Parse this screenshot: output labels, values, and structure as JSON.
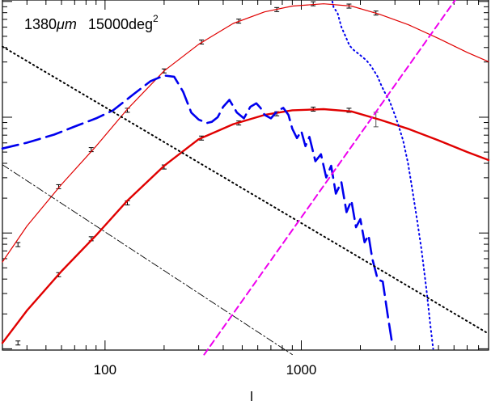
{
  "chart_data": {
    "type": "line",
    "title": "",
    "annotation": {
      "wavelength": "1380",
      "wavelength_unit": "μm",
      "area": "15000",
      "area_unit": "deg",
      "area_exponent": "2"
    },
    "xlabel": "l",
    "ylabel": "",
    "x_scale": "log",
    "y_scale": "log",
    "xlim": [
      30,
      9000
    ],
    "ylim_decades": 3,
    "grid": false,
    "legend": "none",
    "x_ticks": [
      {
        "value": 100,
        "label": "100"
      },
      {
        "value": 1000,
        "label": "1000"
      }
    ],
    "series": [
      {
        "style": "solid-thin",
        "color": "#e00000",
        "x": [
          30,
          40,
          60,
          90,
          130,
          200,
          300,
          450,
          650,
          900,
          1300,
          1800,
          2500,
          3500,
          5000,
          7000,
          9000
        ],
        "y": [
          -1.25,
          -0.94,
          -0.58,
          -0.25,
          0.07,
          0.4,
          0.63,
          0.81,
          0.91,
          0.96,
          0.98,
          0.96,
          0.89,
          0.8,
          0.68,
          0.56,
          0.48
        ]
      },
      {
        "style": "solid-thick",
        "color": "#e00000",
        "x": [
          30,
          40,
          60,
          90,
          130,
          200,
          300,
          450,
          650,
          900,
          1300,
          1800,
          2500,
          3500,
          5000,
          7000,
          9000
        ],
        "y": [
          -1.95,
          -1.67,
          -1.33,
          -1.02,
          -0.72,
          -0.42,
          -0.19,
          -0.06,
          0.02,
          0.06,
          0.07,
          0.05,
          -0.02,
          -0.1,
          -0.2,
          -0.3,
          -0.37
        ]
      },
      {
        "style": "dashed-long",
        "color": "#0000ee",
        "x": [
          30,
          40,
          55,
          70,
          90,
          110,
          140,
          170,
          200,
          225,
          250,
          275,
          300,
          330,
          350,
          375,
          400,
          430,
          470,
          510,
          550,
          590,
          620,
          650,
          700,
          760,
          810,
          860,
          900,
          950,
          1000,
          1050,
          1100,
          1180,
          1260,
          1340,
          1420,
          1500,
          1600,
          1700,
          1800,
          1900,
          2000,
          2100,
          2200,
          2300,
          2450,
          2600,
          2750,
          2900
        ],
        "y": [
          -0.27,
          -0.22,
          -0.15,
          -0.08,
          -0.01,
          0.06,
          0.2,
          0.31,
          0.36,
          0.35,
          0.22,
          0.04,
          -0.02,
          -0.05,
          -0.04,
          0.0,
          0.09,
          0.15,
          0.04,
          -0.01,
          0.09,
          0.12,
          0.08,
          0.02,
          -0.01,
          0.06,
          0.08,
          0.02,
          -0.1,
          -0.18,
          -0.12,
          -0.25,
          -0.17,
          -0.38,
          -0.32,
          -0.52,
          -0.42,
          -0.66,
          -0.56,
          -0.82,
          -0.72,
          -0.95,
          -0.88,
          -1.08,
          -1.02,
          -1.22,
          -1.4,
          -1.42,
          -1.7,
          -1.95
        ]
      },
      {
        "style": "dotted",
        "color": "#0000ee",
        "x": [
          1200,
          1270,
          1340,
          1400,
          1460,
          1530,
          1600,
          1680,
          1760,
          1850,
          1950,
          2050,
          2150,
          2250,
          2350,
          2450,
          2550,
          2650,
          2800,
          2950,
          3100,
          3300,
          3500,
          3700,
          3900,
          4100,
          4350,
          4550,
          4700
        ],
        "y": [
          1.95,
          1.6,
          1.32,
          1.1,
          0.95,
          0.9,
          0.78,
          0.7,
          0.62,
          0.58,
          0.55,
          0.52,
          0.49,
          0.45,
          0.4,
          0.35,
          0.28,
          0.22,
          0.15,
          0.05,
          -0.05,
          -0.2,
          -0.4,
          -0.65,
          -0.9,
          -1.15,
          -1.5,
          -1.8,
          -2.0
        ]
      },
      {
        "style": "dotted",
        "color": "#000000",
        "x": [
          30,
          9000
        ],
        "y": [
          0.61,
          -1.87
        ]
      },
      {
        "style": "dash-dot",
        "color": "#000000",
        "x": [
          30,
          900
        ],
        "y": [
          -0.41,
          -2.05
        ]
      },
      {
        "style": "dashed",
        "color": "#ee00ee",
        "x": [
          320,
          9000
        ],
        "y": [
          -2.05,
          1.42
        ]
      }
    ],
    "error_bar_points": [
      {
        "curve": "thin",
        "x": 36,
        "y": -1.1
      },
      {
        "curve": "thin",
        "x": 58,
        "y": -0.6
      },
      {
        "curve": "thin",
        "x": 85,
        "y": -0.28
      },
      {
        "curve": "thin",
        "x": 130,
        "y": 0.06
      },
      {
        "curve": "thin",
        "x": 200,
        "y": 0.4
      },
      {
        "curve": "thin",
        "x": 310,
        "y": 0.65
      },
      {
        "curve": "thin",
        "x": 480,
        "y": 0.83
      },
      {
        "curve": "thin",
        "x": 750,
        "y": 0.93
      },
      {
        "curve": "thin",
        "x": 1150,
        "y": 0.98
      },
      {
        "curve": "thin",
        "x": 1750,
        "y": 0.96
      },
      {
        "curve": "thin",
        "x": 2400,
        "y": 0.9
      },
      {
        "curve": "thick",
        "x": 36,
        "y": -1.95
      },
      {
        "curve": "thick",
        "x": 58,
        "y": -1.36
      },
      {
        "curve": "thick",
        "x": 85,
        "y": -1.05
      },
      {
        "curve": "thick",
        "x": 130,
        "y": -0.74
      },
      {
        "curve": "thick",
        "x": 200,
        "y": -0.43
      },
      {
        "curve": "thick",
        "x": 310,
        "y": -0.18
      },
      {
        "curve": "thick",
        "x": 480,
        "y": -0.05
      },
      {
        "curve": "thick",
        "x": 750,
        "y": 0.03
      },
      {
        "curve": "thick",
        "x": 1150,
        "y": 0.07
      },
      {
        "curve": "thick",
        "x": 1750,
        "y": 0.06
      },
      {
        "curve": "thick",
        "x": 2400,
        "y": -0.02,
        "large": true
      }
    ]
  }
}
